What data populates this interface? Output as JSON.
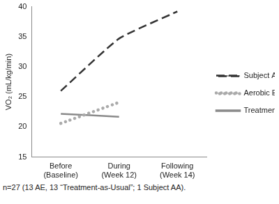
{
  "chart_data": {
    "type": "line",
    "y_label": "VO₂ (mL/kg/min)",
    "categories": [
      "Before (Baseline)",
      "During (Week 12)",
      "Following (Week 14)"
    ],
    "series": [
      {
        "name": "Subject AA",
        "color": "#333333",
        "line_style": "dashed",
        "values": [
          26,
          34.7,
          39.2
        ]
      },
      {
        "name": "Aerobic Exercise",
        "color": "#aaaaaa",
        "line_style": "dotted",
        "values": [
          20.6,
          24.1,
          null
        ]
      },
      {
        "name": "Treatment as Usual",
        "color": "#8a8a8a",
        "line_style": "solid",
        "values": [
          22.2,
          21.7,
          null
        ]
      }
    ],
    "ylim": [
      15,
      40
    ],
    "yticks": [
      15,
      20,
      25,
      30,
      35,
      40
    ],
    "grid": false,
    "legend": "right",
    "annotations": [
      "n=27 (13 AE, 13 “Treatment-as-Usual”; 1 Subject AA)."
    ]
  }
}
